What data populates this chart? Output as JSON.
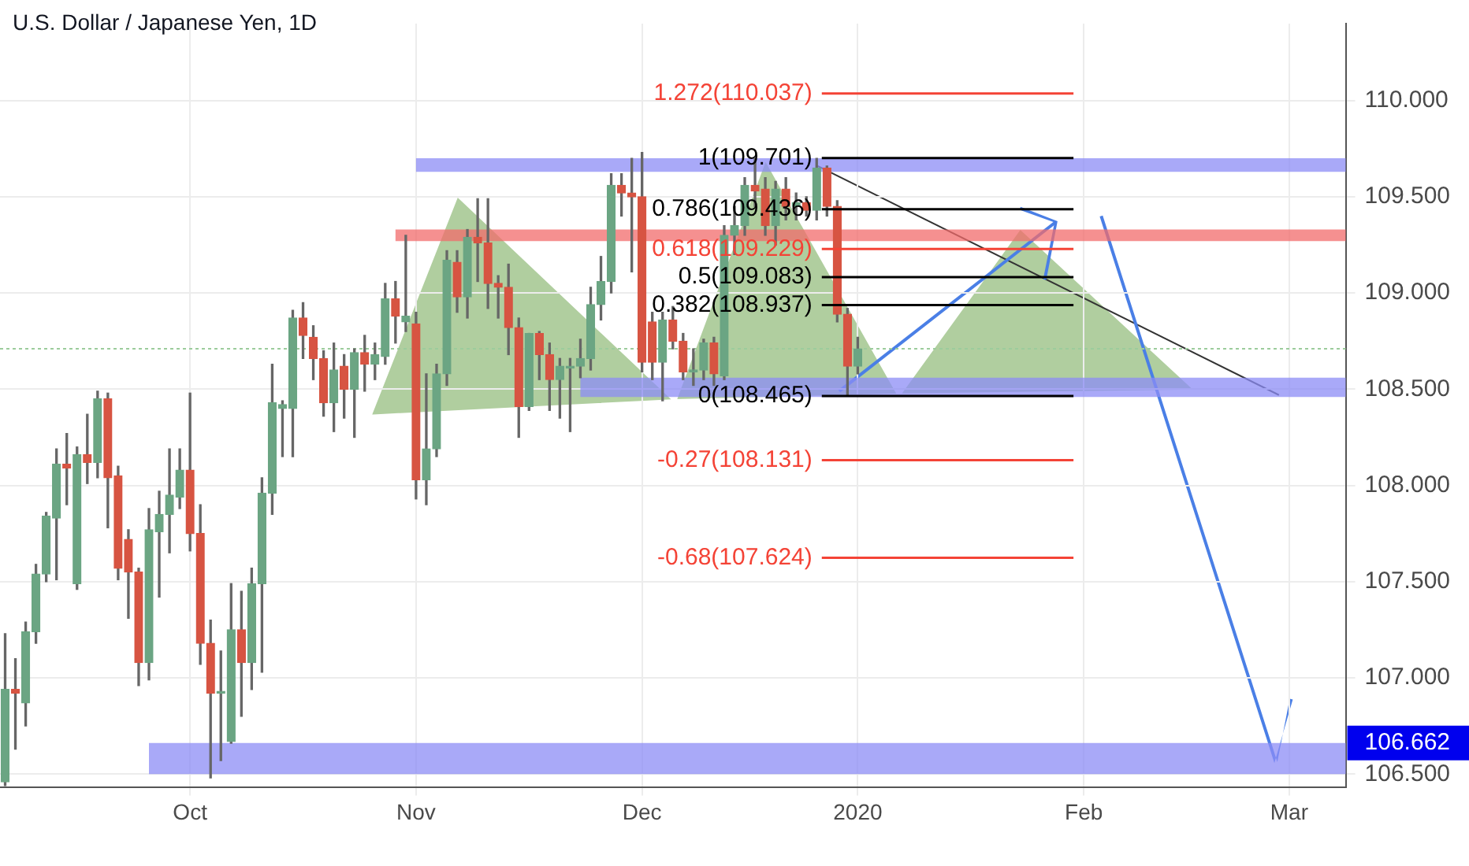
{
  "chart_data": {
    "type": "candlestick",
    "title": "U.S. Dollar / Japanese Yen, 1D",
    "categories": [
      null,
      null,
      null,
      null,
      null,
      null,
      null,
      null,
      null,
      null,
      null,
      null,
      null,
      null,
      null,
      null,
      null,
      null,
      "Oct",
      null,
      null,
      null,
      null,
      null,
      null,
      null,
      null,
      null,
      null,
      null,
      null,
      null,
      null,
      null,
      null,
      null,
      null,
      null,
      null,
      null,
      "Nov",
      null,
      null,
      null,
      null,
      null,
      null,
      null,
      null,
      null,
      null,
      null,
      null,
      null,
      null,
      null,
      null,
      null,
      null,
      null,
      null,
      null,
      "Dec",
      null,
      null,
      null,
      null,
      null,
      null,
      null,
      null,
      null,
      null,
      null,
      null,
      null,
      null,
      null,
      null,
      null,
      null,
      null,
      null,
      "2020",
      null,
      null,
      null,
      null,
      null,
      null,
      null,
      null,
      null,
      null,
      null,
      null,
      null,
      null,
      null,
      null,
      null,
      null,
      null,
      null,
      null,
      "Feb",
      null,
      null,
      null,
      null,
      null,
      null,
      null,
      null,
      null,
      null,
      null,
      null,
      null,
      null,
      null,
      null,
      null,
      null,
      null,
      "Mar",
      null,
      null,
      null,
      null,
      null
    ],
    "ohlc": [
      [
        106.46,
        107.23,
        106.44,
        106.94
      ],
      [
        106.94,
        107.1,
        106.63,
        106.92
      ],
      [
        106.87,
        107.29,
        106.75,
        107.24
      ],
      [
        107.24,
        107.59,
        107.18,
        107.54
      ],
      [
        107.54,
        107.86,
        107.5,
        107.84
      ],
      [
        107.83,
        108.19,
        107.51,
        108.11
      ],
      [
        108.11,
        108.27,
        107.9,
        108.09
      ],
      [
        107.49,
        108.2,
        107.46,
        108.16
      ],
      [
        108.16,
        108.37,
        108.01,
        108.12
      ],
      [
        108.12,
        108.49,
        108.04,
        108.45
      ],
      [
        108.45,
        108.48,
        107.78,
        108.04
      ],
      [
        108.05,
        108.1,
        107.51,
        107.57
      ],
      [
        107.72,
        107.77,
        107.31,
        107.55
      ],
      [
        107.55,
        107.57,
        106.96,
        107.08
      ],
      [
        107.08,
        107.88,
        106.99,
        107.77
      ],
      [
        107.76,
        107.97,
        107.42,
        107.85
      ],
      [
        107.85,
        108.19,
        107.65,
        107.95
      ],
      [
        107.94,
        108.19,
        107.88,
        108.08
      ],
      [
        108.08,
        108.48,
        107.66,
        107.75
      ],
      [
        107.75,
        107.9,
        107.07,
        107.18
      ],
      [
        107.18,
        107.3,
        106.48,
        106.92
      ],
      [
        106.92,
        107.14,
        106.57,
        106.93
      ],
      [
        106.67,
        107.49,
        106.66,
        107.25
      ],
      [
        107.25,
        107.45,
        106.8,
        107.08
      ],
      [
        107.08,
        107.57,
        106.94,
        107.49
      ],
      [
        107.49,
        108.04,
        107.03,
        107.96
      ],
      [
        107.96,
        108.63,
        107.85,
        108.43
      ],
      [
        108.4,
        108.44,
        108.15,
        108.42
      ],
      [
        108.4,
        108.91,
        108.15,
        108.87
      ],
      [
        108.87,
        108.95,
        108.66,
        108.78
      ],
      [
        108.77,
        108.83,
        108.55,
        108.66
      ],
      [
        108.66,
        108.7,
        108.36,
        108.43
      ],
      [
        108.43,
        108.74,
        108.28,
        108.6
      ],
      [
        108.62,
        108.68,
        108.35,
        108.5
      ],
      [
        108.5,
        108.71,
        108.25,
        108.69
      ],
      [
        108.69,
        108.78,
        108.49,
        108.63
      ],
      [
        108.63,
        108.74,
        108.55,
        108.68
      ],
      [
        108.67,
        109.05,
        108.63,
        108.97
      ],
      [
        108.97,
        109.06,
        108.74,
        108.88
      ],
      [
        108.85,
        109.3,
        108.8,
        108.88
      ],
      [
        108.84,
        108.9,
        107.93,
        108.03
      ],
      [
        108.03,
        108.58,
        107.9,
        108.19
      ],
      [
        108.19,
        108.63,
        108.15,
        108.58
      ],
      [
        108.58,
        109.22,
        108.52,
        109.17
      ],
      [
        109.16,
        109.22,
        108.9,
        108.98
      ],
      [
        108.98,
        109.33,
        108.87,
        109.29
      ],
      [
        109.29,
        109.49,
        109.06,
        109.26
      ],
      [
        109.26,
        109.49,
        108.92,
        109.05
      ],
      [
        109.05,
        109.09,
        108.87,
        109.03
      ],
      [
        109.03,
        109.15,
        108.68,
        108.82
      ],
      [
        108.82,
        108.87,
        108.25,
        108.41
      ],
      [
        108.41,
        108.79,
        108.39,
        108.79
      ],
      [
        108.79,
        108.8,
        108.55,
        108.68
      ],
      [
        108.68,
        108.74,
        108.39,
        108.55
      ],
      [
        108.55,
        108.66,
        108.35,
        108.62
      ],
      [
        108.61,
        108.66,
        108.28,
        108.62
      ],
      [
        108.62,
        108.76,
        108.56,
        108.66
      ],
      [
        108.66,
        109.03,
        108.6,
        108.94
      ],
      [
        108.94,
        109.19,
        108.86,
        109.06
      ],
      [
        109.06,
        109.62,
        109.0,
        109.56
      ],
      [
        109.56,
        109.62,
        109.4,
        109.52
      ],
      [
        109.52,
        109.7,
        109.11,
        109.5
      ],
      [
        109.5,
        109.73,
        108.59,
        108.64
      ],
      [
        108.85,
        108.9,
        108.55,
        108.64
      ],
      [
        108.64,
        108.9,
        108.44,
        108.86
      ],
      [
        108.86,
        108.93,
        108.71,
        108.75
      ],
      [
        108.75,
        108.79,
        108.55,
        108.59
      ],
      [
        108.59,
        108.71,
        108.52,
        108.6
      ],
      [
        108.6,
        108.76,
        108.55,
        108.74
      ],
      [
        108.74,
        108.77,
        108.52,
        108.58
      ],
      [
        108.57,
        109.35,
        108.55,
        109.3
      ],
      [
        109.3,
        109.45,
        109.2,
        109.35
      ],
      [
        109.35,
        109.6,
        109.3,
        109.56
      ],
      [
        109.56,
        109.7,
        109.45,
        109.53
      ],
      [
        109.54,
        109.6,
        109.3,
        109.35
      ],
      [
        109.35,
        109.58,
        109.25,
        109.54
      ],
      [
        109.54,
        109.6,
        109.38,
        109.45
      ],
      [
        109.45,
        109.52,
        109.38,
        109.47
      ],
      [
        109.47,
        109.5,
        109.4,
        109.43
      ],
      [
        109.43,
        109.7,
        109.38,
        109.65
      ],
      [
        109.65,
        109.66,
        109.4,
        109.45
      ],
      [
        109.45,
        109.48,
        108.85,
        108.89
      ],
      [
        108.89,
        108.92,
        108.47,
        108.62
      ],
      [
        108.62,
        108.77,
        108.58,
        108.71
      ],
      null,
      null,
      null,
      null,
      null,
      null,
      null,
      null,
      null,
      null,
      null,
      null,
      null,
      null,
      null,
      null,
      null,
      null,
      null,
      null,
      null,
      null,
      null,
      null,
      null,
      null,
      null,
      null,
      null,
      null,
      null,
      null,
      null,
      null,
      null,
      null,
      null,
      null,
      null,
      null,
      null,
      null,
      null,
      null,
      null,
      null,
      null
    ],
    "colors": [
      "#6ba583",
      "#d75442",
      "#6ba583",
      "#6ba583",
      "#6ba583",
      "#6ba583",
      "#d75442",
      "#6ba583",
      "#d75442",
      "#6ba583",
      "#d75442",
      "#d75442",
      "#d75442",
      "#d75442",
      "#6ba583",
      "#6ba583",
      "#6ba583",
      "#6ba583",
      "#d75442",
      "#d75442",
      "#d75442",
      "#6ba583",
      "#6ba583",
      "#d75442",
      "#6ba583",
      "#6ba583",
      "#6ba583",
      "#6ba583",
      "#6ba583",
      "#d75442",
      "#d75442",
      "#d75442",
      "#6ba583",
      "#d75442",
      "#6ba583",
      "#d75442",
      "#6ba583",
      "#6ba583",
      "#d75442",
      "#6ba583",
      "#d75442",
      "#6ba583",
      "#6ba583",
      "#6ba583",
      "#d75442",
      "#6ba583",
      "#d75442",
      "#d75442",
      "#d75442",
      "#d75442",
      "#d75442",
      "#6ba583",
      "#d75442",
      "#d75442",
      "#6ba583",
      "#6ba583",
      "#6ba583",
      "#6ba583",
      "#6ba583",
      "#6ba583",
      "#d75442",
      "#d75442",
      "#d75442",
      "#d75442",
      "#6ba583",
      "#d75442",
      "#d75442",
      "#6ba583",
      "#6ba583",
      "#d75442",
      "#6ba583",
      "#6ba583",
      "#6ba583",
      "#d75442",
      "#d75442",
      "#6ba583",
      "#d75442",
      "#6ba583",
      "#d75442",
      "#6ba583",
      "#d75442",
      "#d75442",
      "#d75442",
      "#6ba583",
      null,
      null,
      null,
      null,
      null,
      null,
      null,
      null,
      null,
      null,
      null,
      null,
      null,
      null,
      null,
      null,
      null,
      null,
      null,
      null,
      null,
      null,
      null,
      null,
      null,
      null,
      null,
      null,
      null,
      null,
      null,
      null,
      null,
      null,
      null,
      null,
      null,
      null,
      null,
      null,
      null,
      null,
      null,
      null,
      null,
      null,
      null
    ],
    "ylim": [
      106.43,
      110.4
    ],
    "yticks": [
      {
        "value": 106.5,
        "label": "106.500"
      },
      {
        "value": 107,
        "label": "107.000"
      },
      {
        "value": 107.5,
        "label": "107.500"
      },
      {
        "value": 108,
        "label": "108.000"
      },
      {
        "value": 108.5,
        "label": "108.500"
      },
      {
        "value": 109,
        "label": "109.000"
      },
      {
        "value": 109.5,
        "label": "109.500"
      },
      {
        "value": 110,
        "label": "110.000"
      }
    ],
    "grid": true,
    "bands": [
      {
        "axis": "y",
        "from": 109.63,
        "to": 109.7,
        "color": "#8c8cf5"
      },
      {
        "axis": "y",
        "from": 109.27,
        "to": 109.33,
        "color": "#f26b6b"
      },
      {
        "axis": "y",
        "from": 108.46,
        "to": 108.56,
        "color": "#8c8cf5"
      },
      {
        "axis": "y",
        "from": 106.5,
        "to": 106.662,
        "color": "#8c8cf5",
        "label": "106.662"
      }
    ],
    "ref_lines": [
      {
        "axis": "y",
        "value": 110.037,
        "label": "1.272(110.037)",
        "color": "#f44336"
      },
      {
        "axis": "y",
        "value": 109.701,
        "label": "1(109.701)",
        "color": "#000000"
      },
      {
        "axis": "y",
        "value": 109.436,
        "label": "0.786(109.436)",
        "color": "#000000"
      },
      {
        "axis": "y",
        "value": 109.229,
        "label": "0.618(109.229)",
        "color": "#f44336"
      },
      {
        "axis": "y",
        "value": 109.083,
        "label": "0.5(109.083)",
        "color": "#000000"
      },
      {
        "axis": "y",
        "value": 108.937,
        "label": "0.382(108.937)",
        "color": "#000000"
      },
      {
        "axis": "y",
        "value": 108.465,
        "label": "0(108.465)",
        "color": "#000000"
      },
      {
        "axis": "y",
        "value": 108.131,
        "label": "-0.27(108.131)",
        "color": "#f44336"
      },
      {
        "axis": "y",
        "value": 107.624,
        "label": "-0.68(107.624)",
        "color": "#f44336"
      },
      {
        "axis": "y",
        "value": 108.71,
        "color": "#9ccc9c",
        "line_style": "dotted"
      }
    ]
  }
}
